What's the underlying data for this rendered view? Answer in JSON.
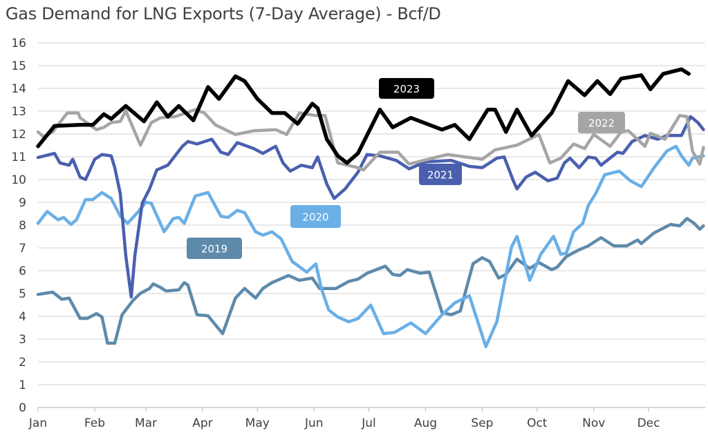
{
  "chart_data": {
    "type": "line",
    "title": "Gas Demand for LNG Exports (7-Day Average) - Bcf/D",
    "xlabel": "",
    "ylabel": "",
    "ylim": [
      0,
      16
    ],
    "yticks": [
      "0",
      "1",
      "2",
      "3",
      "4",
      "5",
      "6",
      "7",
      "8",
      "9",
      "10",
      "11",
      "12",
      "13",
      "14",
      "15",
      "16"
    ],
    "xticks": [
      "Jan",
      "Feb",
      "Mar",
      "Apr",
      "May",
      "Jun",
      "Jul",
      "Aug",
      "Sep",
      "Oct",
      "Nov",
      "Dec"
    ],
    "grid": "horizontal",
    "x_unit": "day_of_year",
    "series": [
      {
        "name": "2019",
        "color": "#5e8aaa",
        "points": [
          [
            0,
            4.96
          ],
          [
            8,
            5.06
          ],
          [
            13,
            4.75
          ],
          [
            17,
            4.8
          ],
          [
            23,
            3.91
          ],
          [
            27,
            3.91
          ],
          [
            32,
            4.12
          ],
          [
            35,
            3.97
          ],
          [
            38,
            2.82
          ],
          [
            42,
            2.82
          ],
          [
            46,
            4.07
          ],
          [
            52,
            4.7
          ],
          [
            56,
            5.01
          ],
          [
            61,
            5.22
          ],
          [
            63,
            5.42
          ],
          [
            67,
            5.27
          ],
          [
            70,
            5.11
          ],
          [
            77,
            5.16
          ],
          [
            80,
            5.48
          ],
          [
            82,
            5.37
          ],
          [
            87,
            4.07
          ],
          [
            93,
            4.02
          ],
          [
            101,
            3.24
          ],
          [
            108,
            4.8
          ],
          [
            113,
            5.22
          ],
          [
            119,
            4.8
          ],
          [
            123,
            5.22
          ],
          [
            128,
            5.48
          ],
          [
            137,
            5.79
          ],
          [
            143,
            5.58
          ],
          [
            150,
            5.68
          ],
          [
            154,
            5.22
          ],
          [
            158,
            5.22
          ],
          [
            163,
            5.22
          ],
          [
            170,
            5.53
          ],
          [
            175,
            5.63
          ],
          [
            180,
            5.89
          ],
          [
            190,
            6.2
          ],
          [
            194,
            5.84
          ],
          [
            198,
            5.79
          ],
          [
            202,
            6.05
          ],
          [
            209,
            5.89
          ],
          [
            214,
            5.94
          ],
          [
            221,
            4.17
          ],
          [
            226,
            4.07
          ],
          [
            231,
            4.23
          ],
          [
            238,
            6.31
          ],
          [
            243,
            6.57
          ],
          [
            247,
            6.41
          ],
          [
            252,
            5.68
          ],
          [
            256,
            5.84
          ],
          [
            262,
            6.51
          ],
          [
            269,
            6.1
          ],
          [
            274,
            6.36
          ],
          [
            281,
            6.05
          ],
          [
            284,
            6.15
          ],
          [
            289,
            6.62
          ],
          [
            295,
            6.88
          ],
          [
            301,
            7.09
          ],
          [
            308,
            7.45
          ],
          [
            315,
            7.09
          ],
          [
            322,
            7.09
          ],
          [
            328,
            7.35
          ],
          [
            330,
            7.19
          ],
          [
            337,
            7.66
          ],
          [
            346,
            8.03
          ],
          [
            351,
            7.97
          ],
          [
            355,
            8.29
          ],
          [
            359,
            8.08
          ],
          [
            362,
            7.82
          ],
          [
            364,
            7.97
          ]
        ]
      },
      {
        "name": "2020",
        "color": "#6aafe6",
        "points": [
          [
            0,
            8.08
          ],
          [
            5,
            8.6
          ],
          [
            11,
            8.23
          ],
          [
            14,
            8.34
          ],
          [
            18,
            8.03
          ],
          [
            21,
            8.23
          ],
          [
            26,
            9.12
          ],
          [
            30,
            9.12
          ],
          [
            35,
            9.43
          ],
          [
            40,
            9.17
          ],
          [
            45,
            8.39
          ],
          [
            49,
            8.08
          ],
          [
            55,
            8.6
          ],
          [
            59,
            9.01
          ],
          [
            62,
            8.96
          ],
          [
            69,
            7.71
          ],
          [
            74,
            8.29
          ],
          [
            77,
            8.34
          ],
          [
            80,
            8.08
          ],
          [
            86,
            9.28
          ],
          [
            93,
            9.43
          ],
          [
            100,
            8.39
          ],
          [
            104,
            8.34
          ],
          [
            109,
            8.65
          ],
          [
            113,
            8.55
          ],
          [
            119,
            7.71
          ],
          [
            123,
            7.56
          ],
          [
            128,
            7.71
          ],
          [
            133,
            7.4
          ],
          [
            139,
            6.41
          ],
          [
            147,
            5.94
          ],
          [
            152,
            6.3
          ],
          [
            155,
            5.22
          ],
          [
            159,
            4.28
          ],
          [
            164,
            3.97
          ],
          [
            170,
            3.76
          ],
          [
            175,
            3.9
          ],
          [
            182,
            4.49
          ],
          [
            189,
            3.24
          ],
          [
            195,
            3.29
          ],
          [
            204,
            3.71
          ],
          [
            212,
            3.24
          ],
          [
            221,
            4.07
          ],
          [
            228,
            4.59
          ],
          [
            236,
            4.9
          ],
          [
            245,
            2.67
          ],
          [
            251,
            3.76
          ],
          [
            255,
            5.42
          ],
          [
            259,
            7.04
          ],
          [
            262,
            7.51
          ],
          [
            269,
            5.58
          ],
          [
            275,
            6.72
          ],
          [
            282,
            7.51
          ],
          [
            286,
            6.72
          ],
          [
            289,
            6.77
          ],
          [
            293,
            7.71
          ],
          [
            298,
            8.08
          ],
          [
            301,
            8.86
          ],
          [
            305,
            9.38
          ],
          [
            310,
            10.21
          ],
          [
            318,
            10.37
          ],
          [
            324,
            9.95
          ],
          [
            330,
            9.69
          ],
          [
            337,
            10.52
          ],
          [
            344,
            11.25
          ],
          [
            349,
            11.46
          ],
          [
            352,
            11.04
          ],
          [
            356,
            10.63
          ],
          [
            358,
            10.94
          ],
          [
            364,
            11.04
          ]
        ]
      },
      {
        "name": "2021",
        "color": "#4a5fae",
        "points": [
          [
            0,
            10.97
          ],
          [
            9,
            11.15
          ],
          [
            12,
            10.73
          ],
          [
            17,
            10.63
          ],
          [
            19,
            10.89
          ],
          [
            23,
            10.11
          ],
          [
            26,
            10.0
          ],
          [
            31,
            10.89
          ],
          [
            35,
            11.1
          ],
          [
            40,
            11.04
          ],
          [
            42,
            10.52
          ],
          [
            45,
            9.38
          ],
          [
            48,
            6.67
          ],
          [
            51,
            4.85
          ],
          [
            53,
            6.67
          ],
          [
            57,
            8.96
          ],
          [
            61,
            9.59
          ],
          [
            65,
            10.42
          ],
          [
            71,
            10.63
          ],
          [
            79,
            11.46
          ],
          [
            82,
            11.67
          ],
          [
            87,
            11.56
          ],
          [
            95,
            11.77
          ],
          [
            100,
            11.2
          ],
          [
            104,
            11.1
          ],
          [
            109,
            11.62
          ],
          [
            118,
            11.36
          ],
          [
            123,
            11.15
          ],
          [
            130,
            11.46
          ],
          [
            134,
            10.73
          ],
          [
            138,
            10.37
          ],
          [
            144,
            10.63
          ],
          [
            150,
            10.52
          ],
          [
            153,
            10.99
          ],
          [
            158,
            9.8
          ],
          [
            162,
            9.17
          ],
          [
            168,
            9.59
          ],
          [
            175,
            10.32
          ],
          [
            180,
            11.1
          ],
          [
            187,
            11.04
          ],
          [
            196,
            10.84
          ],
          [
            203,
            10.47
          ],
          [
            212,
            10.78
          ],
          [
            226,
            10.84
          ],
          [
            236,
            10.58
          ],
          [
            243,
            10.52
          ],
          [
            251,
            10.94
          ],
          [
            255,
            10.99
          ],
          [
            260,
            9.95
          ],
          [
            262,
            9.59
          ],
          [
            267,
            10.11
          ],
          [
            272,
            10.32
          ],
          [
            279,
            9.95
          ],
          [
            284,
            10.06
          ],
          [
            288,
            10.73
          ],
          [
            291,
            10.94
          ],
          [
            296,
            10.52
          ],
          [
            301,
            10.99
          ],
          [
            305,
            10.94
          ],
          [
            308,
            10.63
          ],
          [
            317,
            11.2
          ],
          [
            320,
            11.15
          ],
          [
            325,
            11.67
          ],
          [
            332,
            11.93
          ],
          [
            339,
            11.77
          ],
          [
            344,
            11.93
          ],
          [
            352,
            11.93
          ],
          [
            357,
            12.76
          ],
          [
            361,
            12.5
          ],
          [
            364,
            12.19
          ]
        ]
      },
      {
        "name": "2022",
        "color": "#a5a5a5",
        "points": [
          [
            0,
            12.09
          ],
          [
            3,
            11.88
          ],
          [
            8,
            12.09
          ],
          [
            16,
            12.92
          ],
          [
            22,
            12.92
          ],
          [
            23,
            12.71
          ],
          [
            32,
            12.19
          ],
          [
            36,
            12.29
          ],
          [
            40,
            12.5
          ],
          [
            45,
            12.55
          ],
          [
            48,
            13.02
          ],
          [
            56,
            11.51
          ],
          [
            62,
            12.5
          ],
          [
            67,
            12.71
          ],
          [
            75,
            12.76
          ],
          [
            86,
            13.07
          ],
          [
            91,
            12.92
          ],
          [
            97,
            12.4
          ],
          [
            105,
            12.09
          ],
          [
            108,
            11.98
          ],
          [
            118,
            12.14
          ],
          [
            130,
            12.19
          ],
          [
            136,
            11.98
          ],
          [
            143,
            12.92
          ],
          [
            152,
            12.81
          ],
          [
            157,
            12.81
          ],
          [
            164,
            10.73
          ],
          [
            175,
            10.52
          ],
          [
            178,
            10.42
          ],
          [
            187,
            11.2
          ],
          [
            197,
            11.2
          ],
          [
            203,
            10.68
          ],
          [
            224,
            11.1
          ],
          [
            243,
            10.89
          ],
          [
            250,
            11.3
          ],
          [
            262,
            11.51
          ],
          [
            274,
            11.98
          ],
          [
            280,
            10.73
          ],
          [
            286,
            10.94
          ],
          [
            293,
            11.56
          ],
          [
            299,
            11.36
          ],
          [
            304,
            11.98
          ],
          [
            313,
            11.46
          ],
          [
            319,
            12.09
          ],
          [
            323,
            12.14
          ],
          [
            332,
            11.46
          ],
          [
            335,
            12.03
          ],
          [
            343,
            11.77
          ],
          [
            351,
            12.81
          ],
          [
            355,
            12.76
          ],
          [
            358,
            11.25
          ],
          [
            362,
            10.68
          ],
          [
            364,
            11.41
          ]
        ]
      },
      {
        "name": "2023",
        "color": "#000000",
        "points": [
          [
            0,
            11.46
          ],
          [
            9,
            12.35
          ],
          [
            23,
            12.4
          ],
          [
            30,
            12.4
          ],
          [
            36,
            12.87
          ],
          [
            40,
            12.66
          ],
          [
            48,
            13.23
          ],
          [
            58,
            12.55
          ],
          [
            65,
            13.39
          ],
          [
            71,
            12.76
          ],
          [
            77,
            13.23
          ],
          [
            85,
            12.6
          ],
          [
            93,
            14.06
          ],
          [
            99,
            13.54
          ],
          [
            108,
            14.53
          ],
          [
            113,
            14.32
          ],
          [
            120,
            13.54
          ],
          [
            128,
            12.92
          ],
          [
            135,
            12.92
          ],
          [
            142,
            12.45
          ],
          [
            150,
            13.33
          ],
          [
            153,
            13.13
          ],
          [
            158,
            11.77
          ],
          [
            164,
            11.04
          ],
          [
            169,
            10.73
          ],
          [
            175,
            11.15
          ],
          [
            187,
            13.07
          ],
          [
            194,
            12.29
          ],
          [
            204,
            12.71
          ],
          [
            221,
            12.19
          ],
          [
            228,
            12.4
          ],
          [
            236,
            11.77
          ],
          [
            246,
            13.07
          ],
          [
            250,
            13.07
          ],
          [
            256,
            12.09
          ],
          [
            262,
            13.07
          ],
          [
            270,
            11.93
          ],
          [
            281,
            12.92
          ],
          [
            290,
            14.32
          ],
          [
            299,
            13.7
          ],
          [
            306,
            14.32
          ],
          [
            313,
            13.75
          ],
          [
            319,
            14.43
          ],
          [
            330,
            14.58
          ],
          [
            335,
            13.96
          ],
          [
            342,
            14.64
          ],
          [
            352,
            14.84
          ],
          [
            356,
            14.64
          ]
        ]
      }
    ]
  }
}
